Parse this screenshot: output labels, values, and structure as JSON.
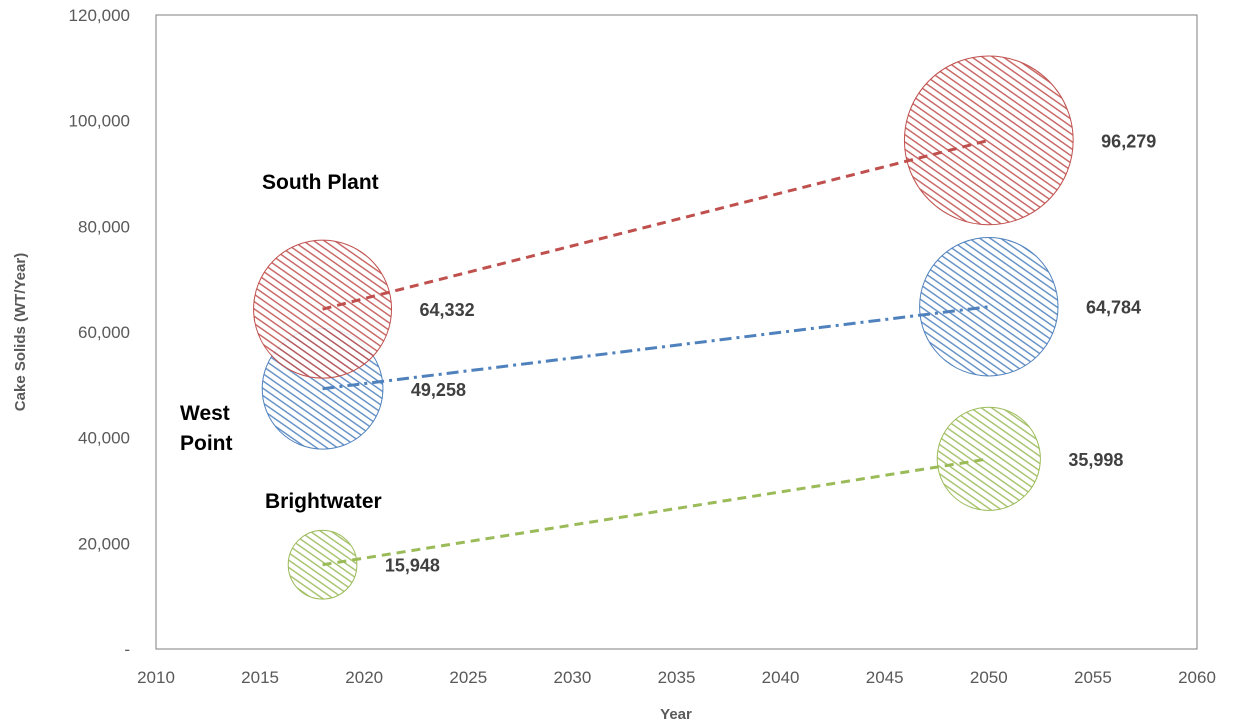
{
  "chart_data": {
    "type": "bubble",
    "xlabel": "Year",
    "ylabel": "Cake Solids (WT/Year)",
    "xlim": [
      2010,
      2060
    ],
    "ylim": [
      0,
      120000
    ],
    "x_ticks": [
      2010,
      2015,
      2020,
      2025,
      2030,
      2035,
      2040,
      2045,
      2050,
      2055,
      2060
    ],
    "y_ticks": [
      0,
      20000,
      40000,
      60000,
      80000,
      100000,
      120000
    ],
    "y_tick_labels": [
      "-",
      "20,000",
      "40,000",
      "60,000",
      "80,000",
      "100,000",
      "120,000"
    ],
    "grid": false,
    "series": [
      {
        "name": "South Plant",
        "color": "#c0504d",
        "line_style": "dashed",
        "points": [
          {
            "x": 2018,
            "y": 64332,
            "label": "64,332"
          },
          {
            "x": 2050,
            "y": 96279,
            "label": "96,279"
          }
        ]
      },
      {
        "name": "West Point",
        "color": "#4f81bd",
        "line_style": "dash-dot",
        "points": [
          {
            "x": 2018,
            "y": 49258,
            "label": "49,258"
          },
          {
            "x": 2050,
            "y": 64784,
            "label": "64,784"
          }
        ]
      },
      {
        "name": "Brightwater",
        "color": "#9bbb59",
        "line_style": "dashed",
        "points": [
          {
            "x": 2018,
            "y": 15948,
            "label": "15,948"
          },
          {
            "x": 2050,
            "y": 35998,
            "label": "35,998"
          }
        ]
      }
    ]
  }
}
